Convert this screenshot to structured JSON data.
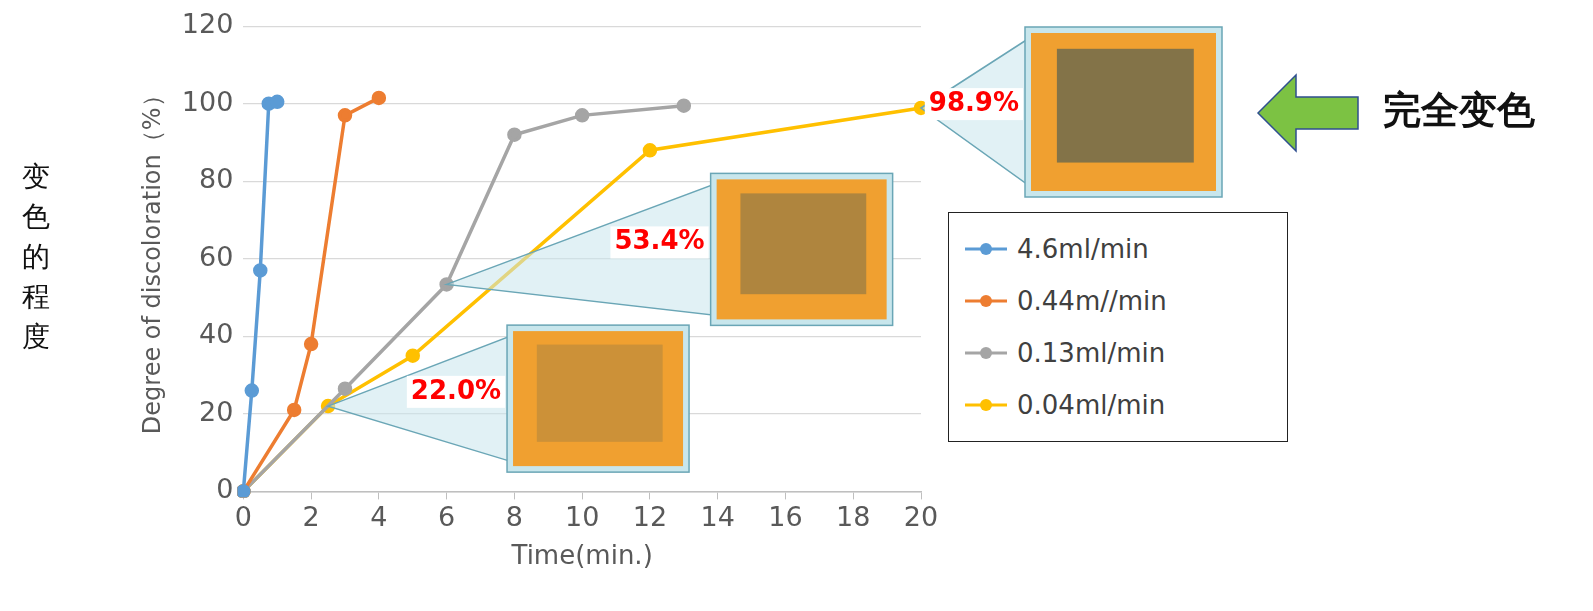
{
  "chart_data": {
    "type": "line",
    "xlabel": "Time(min.)",
    "ylabel": "Degree of discoloration（%）",
    "ylabel_zh": "变色的程度",
    "callout": "完全变色",
    "xlim": [
      0,
      20
    ],
    "xticks": [
      0,
      2,
      4,
      6,
      8,
      10,
      12,
      14,
      16,
      18,
      20
    ],
    "ylim": [
      0,
      120
    ],
    "yticks": [
      0,
      20,
      40,
      60,
      80,
      100,
      120
    ],
    "grid": true,
    "legend": "right",
    "marker": "circle",
    "series": [
      {
        "name": "4.6ml/min",
        "color": "#5B9BD5",
        "x": [
          0,
          0.25,
          0.5,
          0.75,
          1
        ],
        "values": [
          0,
          26,
          57,
          100,
          100.5
        ]
      },
      {
        "name": "0.44m//min",
        "color": "#ED7D31",
        "x": [
          0,
          1.5,
          2,
          3,
          4
        ],
        "values": [
          0,
          21,
          38,
          97,
          101.5
        ]
      },
      {
        "name": "0.13ml/min",
        "color": "#A5A5A5",
        "x": [
          0,
          3,
          6,
          8,
          10,
          13
        ],
        "values": [
          0,
          26.5,
          53.4,
          92,
          97,
          99.5
        ]
      },
      {
        "name": "0.04ml/min",
        "color": "#FFC000",
        "x": [
          0,
          2.5,
          5,
          12,
          20
        ],
        "values": [
          0,
          22,
          35,
          88,
          98.9
        ]
      }
    ],
    "annotations": [
      {
        "text": "22.0%",
        "x": 2.5,
        "y": 22
      },
      {
        "text": "53.4%",
        "x": 6,
        "y": 53.4
      },
      {
        "text": "98.9%",
        "x": 20,
        "y": 98.9
      }
    ]
  }
}
